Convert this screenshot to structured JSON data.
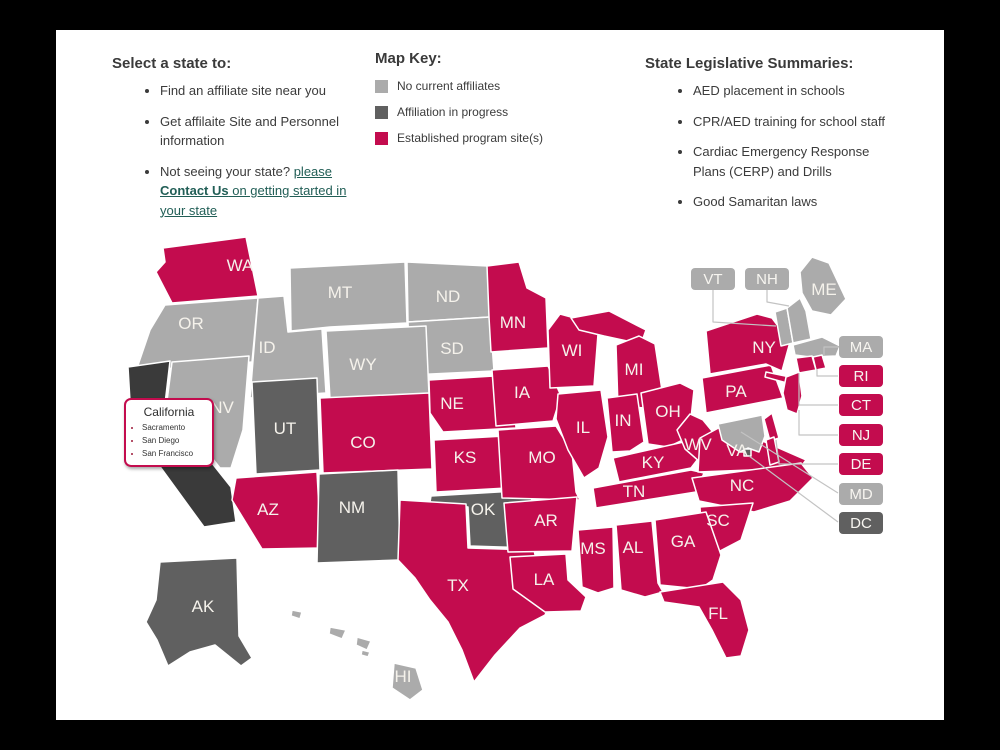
{
  "columns": {
    "select_state": {
      "heading": "Select a state to:",
      "items": [
        "Find an affiliate site near you",
        "Get affilaite Site and Personnel information"
      ],
      "item3_prefix": "Not seeing your state? ",
      "item3_link_pre": "please ",
      "item3_link_bold": "Contact Us",
      "item3_link_post": " on getting started in your state",
      "link_color": "#215e56"
    },
    "map_key": {
      "heading": "Map Key:",
      "items": [
        {
          "label": "No current affiliates",
          "status": "none"
        },
        {
          "label": "Affiliation in progress",
          "status": "progress"
        },
        {
          "label": "Established program site(s)",
          "status": "established"
        }
      ]
    },
    "legislative": {
      "heading": "State Legislative Summaries:",
      "items": [
        "AED placement in schools",
        "CPR/AED training for school staff",
        "Cardiac Emergency Response Plans (CERP) and Drills",
        "Good Samaritan laws"
      ]
    }
  },
  "tooltip": {
    "title": "California",
    "items": [
      "Sacramento",
      "San Diego",
      "San Francisco"
    ]
  },
  "map": {
    "colors": {
      "none": "#ababab",
      "progress": "#606060",
      "established": "#c30c4e",
      "selected": "#3a3a3a",
      "label": "#f5f2eb",
      "leader_line": "#c3c3c3"
    },
    "states": [
      {
        "id": "WA",
        "label": "WA",
        "status": "established"
      },
      {
        "id": "OR",
        "label": "OR",
        "status": "none"
      },
      {
        "id": "ID",
        "label": "ID",
        "status": "none"
      },
      {
        "id": "MT",
        "label": "MT",
        "status": "none"
      },
      {
        "id": "ND",
        "label": "ND",
        "status": "none"
      },
      {
        "id": "SD",
        "label": "SD",
        "status": "none"
      },
      {
        "id": "WY",
        "label": "WY",
        "status": "none"
      },
      {
        "id": "NV",
        "label": "NV",
        "status": "none"
      },
      {
        "id": "UT",
        "label": "UT",
        "status": "progress"
      },
      {
        "id": "CA",
        "label": "",
        "status": "selected"
      },
      {
        "id": "CO",
        "label": "CO",
        "status": "established"
      },
      {
        "id": "AZ",
        "label": "AZ",
        "status": "established"
      },
      {
        "id": "NM",
        "label": "NM",
        "status": "progress"
      },
      {
        "id": "NE",
        "label": "NE",
        "status": "established"
      },
      {
        "id": "KS",
        "label": "KS",
        "status": "established"
      },
      {
        "id": "OK",
        "label": "OK",
        "status": "progress"
      },
      {
        "id": "TX",
        "label": "TX",
        "status": "established"
      },
      {
        "id": "MN",
        "label": "MN",
        "status": "established"
      },
      {
        "id": "IA",
        "label": "IA",
        "status": "established"
      },
      {
        "id": "MO",
        "label": "MO",
        "status": "established"
      },
      {
        "id": "AR",
        "label": "AR",
        "status": "established"
      },
      {
        "id": "LA",
        "label": "LA",
        "status": "established"
      },
      {
        "id": "WI",
        "label": "WI",
        "status": "established"
      },
      {
        "id": "IL",
        "label": "IL",
        "status": "established"
      },
      {
        "id": "MS",
        "label": "MS",
        "status": "established"
      },
      {
        "id": "MI",
        "label": "MI",
        "status": "established"
      },
      {
        "id": "IN",
        "label": "IN",
        "status": "established"
      },
      {
        "id": "OH",
        "label": "OH",
        "status": "established"
      },
      {
        "id": "KY",
        "label": "KY",
        "status": "established"
      },
      {
        "id": "TN",
        "label": "TN",
        "status": "established"
      },
      {
        "id": "WV",
        "label": "WV",
        "status": "established"
      },
      {
        "id": "VA",
        "label": "VA",
        "status": "established"
      },
      {
        "id": "NC",
        "label": "NC",
        "status": "established"
      },
      {
        "id": "SC",
        "label": "SC",
        "status": "established"
      },
      {
        "id": "GA",
        "label": "GA",
        "status": "established"
      },
      {
        "id": "AL",
        "label": "AL",
        "status": "established"
      },
      {
        "id": "FL",
        "label": "FL",
        "status": "established"
      },
      {
        "id": "PA",
        "label": "PA",
        "status": "established"
      },
      {
        "id": "NY",
        "label": "NY",
        "status": "established"
      },
      {
        "id": "ME",
        "label": "ME",
        "status": "none"
      },
      {
        "id": "VT",
        "label": "",
        "status": "none"
      },
      {
        "id": "NH",
        "label": "",
        "status": "none"
      },
      {
        "id": "MA",
        "label": "",
        "status": "none"
      },
      {
        "id": "RI",
        "label": "",
        "status": "established"
      },
      {
        "id": "CT",
        "label": "",
        "status": "established"
      },
      {
        "id": "NJ",
        "label": "",
        "status": "established"
      },
      {
        "id": "DE",
        "label": "",
        "status": "established"
      },
      {
        "id": "MD",
        "label": "",
        "status": "none"
      },
      {
        "id": "DC",
        "label": "",
        "status": "progress"
      },
      {
        "id": "AK",
        "label": "AK",
        "status": "progress"
      },
      {
        "id": "HI",
        "label": "HI",
        "status": "none"
      }
    ],
    "pills": [
      {
        "id": "VT",
        "label": "VT",
        "status": "none"
      },
      {
        "id": "NH",
        "label": "NH",
        "status": "none"
      },
      {
        "id": "MA",
        "label": "MA",
        "status": "none"
      },
      {
        "id": "RI",
        "label": "RI",
        "status": "established"
      },
      {
        "id": "CT",
        "label": "CT",
        "status": "established"
      },
      {
        "id": "NJ",
        "label": "NJ",
        "status": "established"
      },
      {
        "id": "DE",
        "label": "DE",
        "status": "established"
      },
      {
        "id": "MD",
        "label": "MD",
        "status": "none"
      },
      {
        "id": "DC",
        "label": "DC",
        "status": "progress"
      }
    ]
  }
}
